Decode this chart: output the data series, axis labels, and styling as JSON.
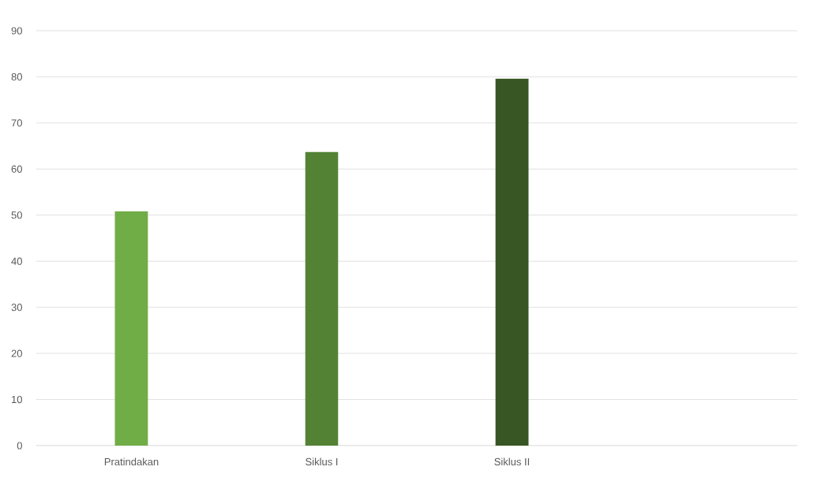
{
  "chart_data": {
    "type": "bar",
    "categories": [
      "Pratindakan",
      "Siklus I",
      "Siklus II",
      null
    ],
    "values": [
      50.8,
      63.7,
      79.6,
      null
    ],
    "colors": [
      "#70ad47",
      "#548235",
      "#375623",
      "#375623"
    ],
    "ylim": [
      0,
      90
    ],
    "yticks": [
      0,
      10,
      20,
      30,
      40,
      50,
      60,
      70,
      80,
      90
    ],
    "grid": "y"
  }
}
